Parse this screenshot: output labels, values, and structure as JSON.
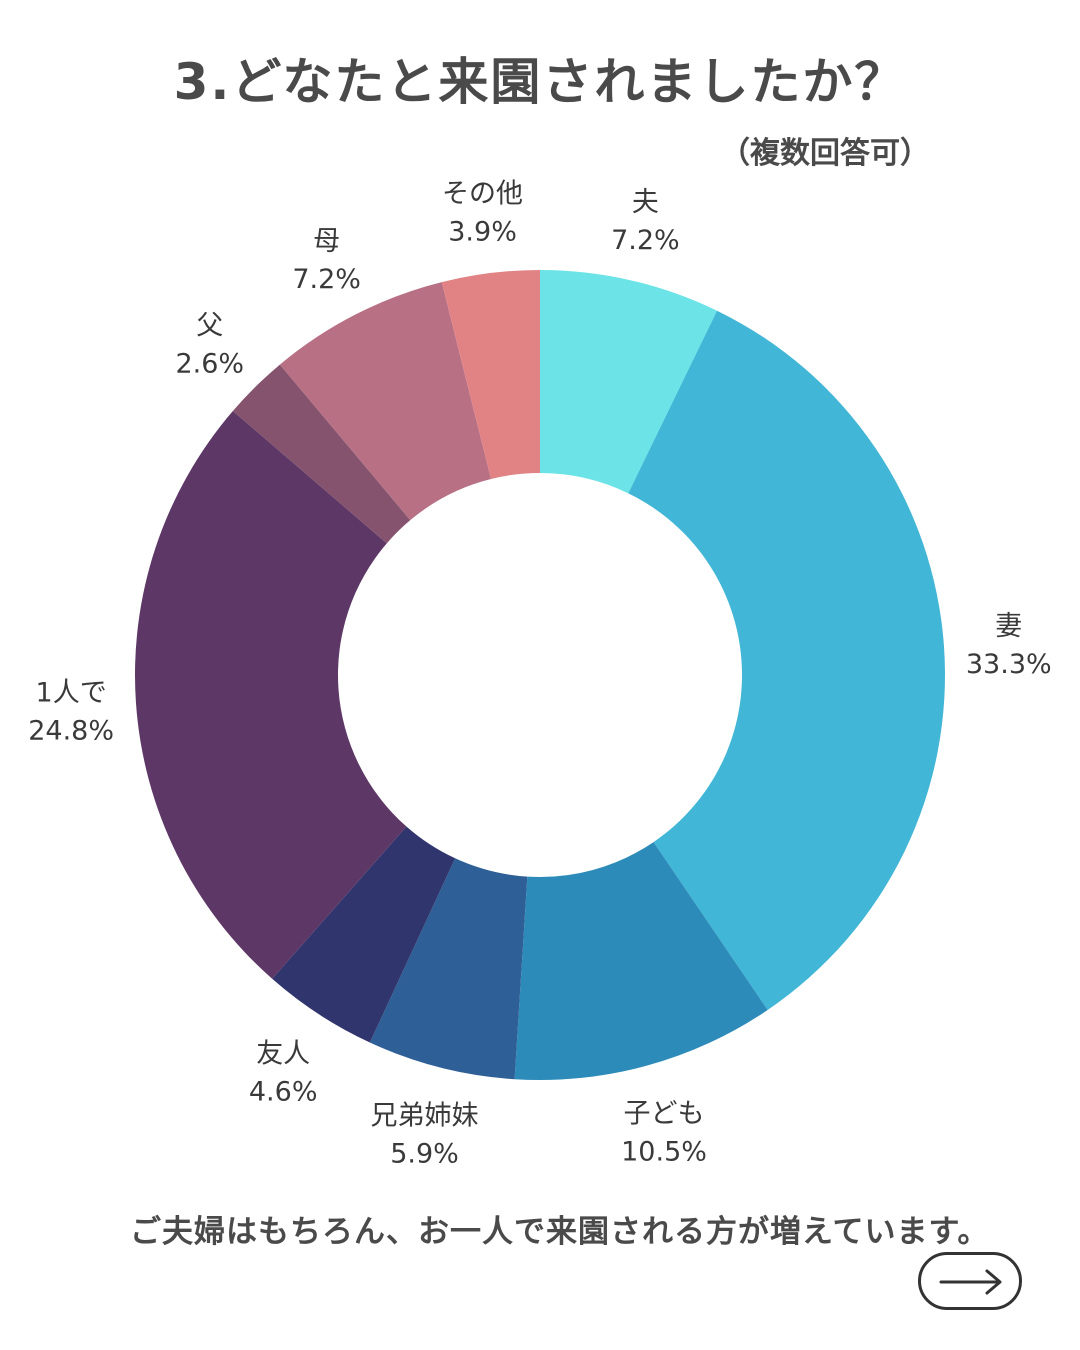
{
  "header": {
    "title": "3.どなたと来園されましたか？",
    "subtitle": "（複数回答可）"
  },
  "chart_data": {
    "type": "pie",
    "style": "donut",
    "title": "3.どなたと来園されましたか？",
    "subtitle": "（複数回答可）",
    "unit": "%",
    "slices": [
      {
        "label": "夫",
        "value": 7.2,
        "display": "7.2%",
        "color": "#6be3e7"
      },
      {
        "label": "妻",
        "value": 33.3,
        "display": "33.3%",
        "color": "#41b6d6"
      },
      {
        "label": "子ども",
        "value": 10.5,
        "display": "10.5%",
        "color": "#2d8bba"
      },
      {
        "label": "兄弟姉妹",
        "value": 5.9,
        "display": "5.9%",
        "color": "#2e5f96"
      },
      {
        "label": "友人",
        "value": 4.6,
        "display": "4.6%",
        "color": "#31356d"
      },
      {
        "label": "1人で",
        "value": 24.8,
        "display": "24.8%",
        "color": "#5d3866"
      },
      {
        "label": "父",
        "value": 2.6,
        "display": "2.6%",
        "color": "#85536e"
      },
      {
        "label": "母",
        "value": 7.2,
        "display": "7.2%",
        "color": "#b87184"
      },
      {
        "label": "その他",
        "value": 3.9,
        "display": "3.9%",
        "color": "#e18285"
      }
    ],
    "start": "12 o'clock",
    "direction": "clockwise",
    "legend": "none"
  },
  "footer": {
    "caption": "ご夫婦はもちろん、お一人で来園される方が増えています。",
    "next_icon": "arrow-right-icon"
  }
}
